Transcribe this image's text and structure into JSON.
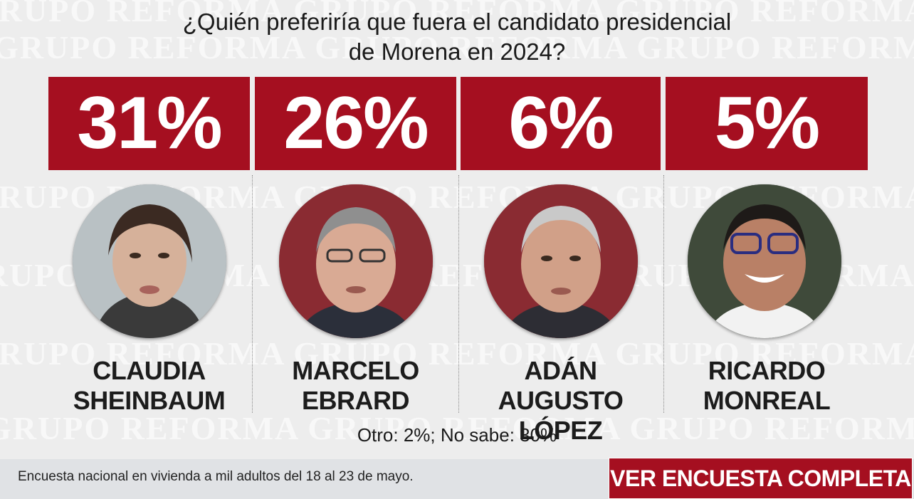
{
  "watermark_text": "GRUPO REFORMA",
  "chart_data": {
    "type": "bar",
    "title": "¿Quién preferiría que fuera el candidato presidencial de Morena en 2024?",
    "title_lines": [
      "¿Quién preferiría que fuera el candidato presidencial",
      "de Morena en 2024?"
    ],
    "categories": [
      "CLAUDIA SHEINBAUM",
      "MARCELO EBRARD",
      "ADÁN AUGUSTO LÓPEZ",
      "RICARDO MONREAL"
    ],
    "values": [
      31,
      26,
      6,
      5
    ],
    "unit": "%",
    "value_labels": [
      "31%",
      "26%",
      "6%",
      "5%"
    ],
    "name_lines": [
      [
        "CLAUDIA",
        "SHEINBAUM"
      ],
      [
        "MARCELO",
        "EBRARD"
      ],
      [
        "ADÁN AUGUSTO",
        "LÓPEZ"
      ],
      [
        "RICARDO",
        "MONREAL"
      ]
    ],
    "bar_color": "#a50f20",
    "other_line": "Otro: 2%; No sabe: 30%"
  },
  "footer": {
    "source": "Encuesta nacional en vivienda a mil adultos del 18 al 23 de mayo.",
    "cta_label": "VER ENCUESTA COMPLETA"
  },
  "colors": {
    "accent": "#a50f20",
    "background": "#ededed",
    "footer_bg": "#e0e2e5"
  }
}
